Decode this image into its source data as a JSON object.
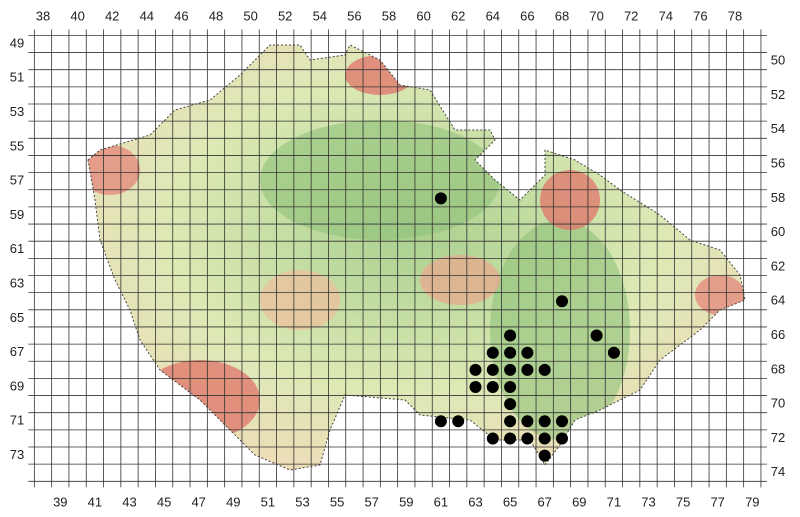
{
  "top_labels": [
    38,
    40,
    42,
    44,
    46,
    48,
    50,
    52,
    54,
    56,
    58,
    60,
    62,
    64,
    66,
    68,
    70,
    72,
    74,
    76,
    78
  ],
  "bottom_labels": [
    39,
    41,
    43,
    45,
    47,
    49,
    51,
    53,
    55,
    57,
    59,
    61,
    63,
    65,
    67,
    69,
    71,
    73,
    75,
    77,
    79
  ],
  "left_labels": [
    49,
    51,
    53,
    55,
    57,
    59,
    61,
    63,
    65,
    67,
    69,
    71,
    73
  ],
  "right_labels": [
    50,
    52,
    54,
    56,
    58,
    60,
    62,
    64,
    66,
    68,
    70,
    72,
    74
  ],
  "points": [
    {
      "col": 61,
      "row": 58
    },
    {
      "col": 68,
      "row": 64
    },
    {
      "col": 65,
      "row": 66
    },
    {
      "col": 70,
      "row": 66
    },
    {
      "col": 64,
      "row": 67
    },
    {
      "col": 65,
      "row": 67
    },
    {
      "col": 66,
      "row": 67
    },
    {
      "col": 71,
      "row": 67
    },
    {
      "col": 63,
      "row": 68
    },
    {
      "col": 64,
      "row": 68
    },
    {
      "col": 65,
      "row": 68
    },
    {
      "col": 66,
      "row": 68
    },
    {
      "col": 67,
      "row": 68
    },
    {
      "col": 63,
      "row": 69
    },
    {
      "col": 64,
      "row": 69
    },
    {
      "col": 65,
      "row": 69
    },
    {
      "col": 65,
      "row": 70
    },
    {
      "col": 61,
      "row": 71
    },
    {
      "col": 62,
      "row": 71
    },
    {
      "col": 65,
      "row": 71
    },
    {
      "col": 66,
      "row": 71
    },
    {
      "col": 67,
      "row": 71
    },
    {
      "col": 68,
      "row": 71
    },
    {
      "col": 64,
      "row": 72
    },
    {
      "col": 65,
      "row": 72
    },
    {
      "col": 66,
      "row": 72
    },
    {
      "col": 67,
      "row": 72
    },
    {
      "col": 68,
      "row": 72
    },
    {
      "col": 67,
      "row": 73
    }
  ]
}
